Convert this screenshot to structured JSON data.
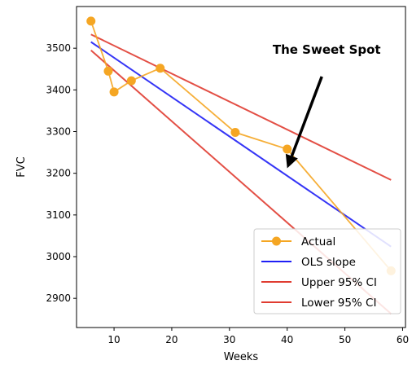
{
  "chart_data": {
    "type": "line",
    "title": "",
    "xlabel": "Weeks",
    "ylabel": "FVC",
    "xlim": [
      3.5,
      60.5
    ],
    "ylim": [
      2830,
      3600
    ],
    "xticks": [
      10,
      20,
      30,
      40,
      50,
      60
    ],
    "yticks": [
      2900,
      3000,
      3100,
      3200,
      3300,
      3400,
      3500
    ],
    "grid": false,
    "legend_position": "bottom-right",
    "series": [
      {
        "name": "Actual",
        "kind": "line-markers",
        "color": "#f5a623",
        "x": [
          6,
          9,
          10,
          13,
          18,
          31,
          40,
          58
        ],
        "y": [
          3565,
          3445,
          3395,
          3422,
          3452,
          3298,
          3258,
          2966
        ]
      },
      {
        "name": "OLS slope",
        "kind": "line",
        "color": "#1f1ff5",
        "x": [
          6,
          58
        ],
        "y": [
          3515,
          3024
        ]
      },
      {
        "name": "Upper 95% CI",
        "kind": "line",
        "color": "#e03c31",
        "x": [
          6,
          58
        ],
        "y": [
          3533,
          3184
        ]
      },
      {
        "name": "Lower 95% CI",
        "kind": "line",
        "color": "#e03c31",
        "x": [
          6,
          58
        ],
        "y": [
          3495,
          2863
        ]
      }
    ],
    "annotations": [
      {
        "text": "The Sweet Spot",
        "arrow_to": [
          40,
          3212
        ],
        "arrow_from": [
          46,
          3432
        ]
      }
    ]
  }
}
